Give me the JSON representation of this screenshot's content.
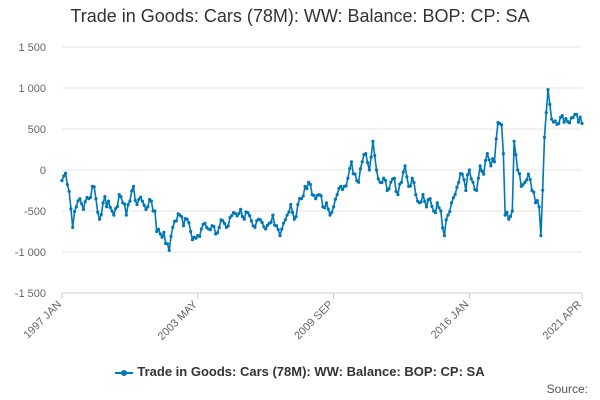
{
  "chart_data": {
    "type": "line",
    "title": "Trade in Goods: Cars (78M): WW: Balance: BOP: CP: SA",
    "xlabel": "",
    "ylabel": "",
    "ylim": [
      -1500,
      1500
    ],
    "yticks": [
      1500,
      1000,
      500,
      0,
      -500,
      -1000,
      -1500
    ],
    "ytick_labels": [
      "1 500",
      "1 000",
      "500",
      "0",
      "-500",
      "-1 000",
      "-1 500"
    ],
    "xticks": [
      {
        "label": "1997 JAN",
        "index": 0
      },
      {
        "label": "2003 MAY",
        "index": 76
      },
      {
        "label": "2009 SEP",
        "index": 152
      },
      {
        "label": "2016 JAN",
        "index": 228
      },
      {
        "label": "2021 APR",
        "index": 291
      }
    ],
    "legend": {
      "position": "bottom-center",
      "entries": [
        "Trade in Goods: Cars (78M): WW: Balance: BOP: CP: SA"
      ]
    },
    "source_label": "Source:",
    "color": "#0077b6",
    "series": [
      {
        "name": "Trade in Goods: Cars (78M): WW: Balance: BOP: CP: SA",
        "anchors": [
          [
            0,
            -130
          ],
          [
            2,
            -40
          ],
          [
            4,
            -260
          ],
          [
            6,
            -700
          ],
          [
            8,
            -450
          ],
          [
            10,
            -350
          ],
          [
            12,
            -480
          ],
          [
            15,
            -350
          ],
          [
            17,
            -200
          ],
          [
            19,
            -350
          ],
          [
            21,
            -600
          ],
          [
            23,
            -400
          ],
          [
            26,
            -380
          ],
          [
            28,
            -500
          ],
          [
            30,
            -470
          ],
          [
            32,
            -300
          ],
          [
            34,
            -400
          ],
          [
            36,
            -550
          ],
          [
            38,
            -380
          ],
          [
            40,
            -200
          ],
          [
            42,
            -420
          ],
          [
            44,
            -330
          ],
          [
            46,
            -430
          ],
          [
            48,
            -450
          ],
          [
            50,
            -380
          ],
          [
            52,
            -500
          ],
          [
            53,
            -750
          ],
          [
            55,
            -780
          ],
          [
            57,
            -760
          ],
          [
            59,
            -900
          ],
          [
            60,
            -980
          ],
          [
            62,
            -700
          ],
          [
            64,
            -620
          ],
          [
            66,
            -550
          ],
          [
            68,
            -680
          ],
          [
            70,
            -600
          ],
          [
            72,
            -750
          ],
          [
            74,
            -820
          ],
          [
            76,
            -800
          ],
          [
            78,
            -720
          ],
          [
            80,
            -650
          ],
          [
            82,
            -720
          ],
          [
            84,
            -680
          ],
          [
            86,
            -780
          ],
          [
            88,
            -700
          ],
          [
            90,
            -620
          ],
          [
            92,
            -700
          ],
          [
            94,
            -580
          ],
          [
            96,
            -520
          ],
          [
            98,
            -560
          ],
          [
            100,
            -480
          ],
          [
            102,
            -600
          ],
          [
            104,
            -520
          ],
          [
            106,
            -620
          ],
          [
            108,
            -700
          ],
          [
            110,
            -600
          ],
          [
            112,
            -640
          ],
          [
            114,
            -720
          ],
          [
            116,
            -650
          ],
          [
            118,
            -550
          ],
          [
            120,
            -680
          ],
          [
            122,
            -800
          ],
          [
            124,
            -650
          ],
          [
            126,
            -550
          ],
          [
            128,
            -420
          ],
          [
            130,
            -600
          ],
          [
            132,
            -420
          ],
          [
            134,
            -350
          ],
          [
            136,
            -200
          ],
          [
            138,
            -150
          ],
          [
            140,
            -300
          ],
          [
            142,
            -350
          ],
          [
            144,
            -300
          ],
          [
            146,
            -450
          ],
          [
            148,
            -400
          ],
          [
            150,
            -550
          ],
          [
            152,
            -450
          ],
          [
            154,
            -300
          ],
          [
            156,
            -200
          ],
          [
            158,
            -200
          ],
          [
            160,
            -100
          ],
          [
            162,
            100
          ],
          [
            164,
            -50
          ],
          [
            166,
            -150
          ],
          [
            168,
            100
          ],
          [
            170,
            200
          ],
          [
            172,
            0
          ],
          [
            174,
            350
          ],
          [
            176,
            0
          ],
          [
            178,
            -150
          ],
          [
            180,
            -100
          ],
          [
            182,
            -250
          ],
          [
            184,
            -150
          ],
          [
            186,
            -100
          ],
          [
            188,
            -300
          ],
          [
            190,
            -150
          ],
          [
            192,
            50
          ],
          [
            194,
            -200
          ],
          [
            196,
            -100
          ],
          [
            198,
            -300
          ],
          [
            200,
            -400
          ],
          [
            202,
            -300
          ],
          [
            204,
            -450
          ],
          [
            206,
            -350
          ],
          [
            208,
            -500
          ],
          [
            210,
            -400
          ],
          [
            212,
            -500
          ],
          [
            214,
            -800
          ],
          [
            216,
            -550
          ],
          [
            218,
            -400
          ],
          [
            220,
            -300
          ],
          [
            222,
            -150
          ],
          [
            224,
            -50
          ],
          [
            226,
            -250
          ],
          [
            228,
            0
          ],
          [
            230,
            -150
          ],
          [
            232,
            -250
          ],
          [
            234,
            50
          ],
          [
            236,
            -50
          ],
          [
            238,
            200
          ],
          [
            240,
            50
          ],
          [
            242,
            100
          ],
          [
            244,
            580
          ],
          [
            246,
            550
          ],
          [
            247,
            200
          ],
          [
            248,
            -550
          ],
          [
            250,
            -600
          ],
          [
            252,
            -500
          ],
          [
            253,
            350
          ],
          [
            255,
            0
          ],
          [
            257,
            -200
          ],
          [
            259,
            -150
          ],
          [
            261,
            -50
          ],
          [
            263,
            -250
          ],
          [
            265,
            -400
          ],
          [
            267,
            -450
          ],
          [
            268,
            -800
          ],
          [
            270,
            400
          ],
          [
            271,
            700
          ],
          [
            272,
            980
          ],
          [
            273,
            800
          ],
          [
            274,
            620
          ]
        ],
        "noise_seed": 7,
        "noise_amplitude": 70,
        "num_points": 292
      }
    ]
  }
}
